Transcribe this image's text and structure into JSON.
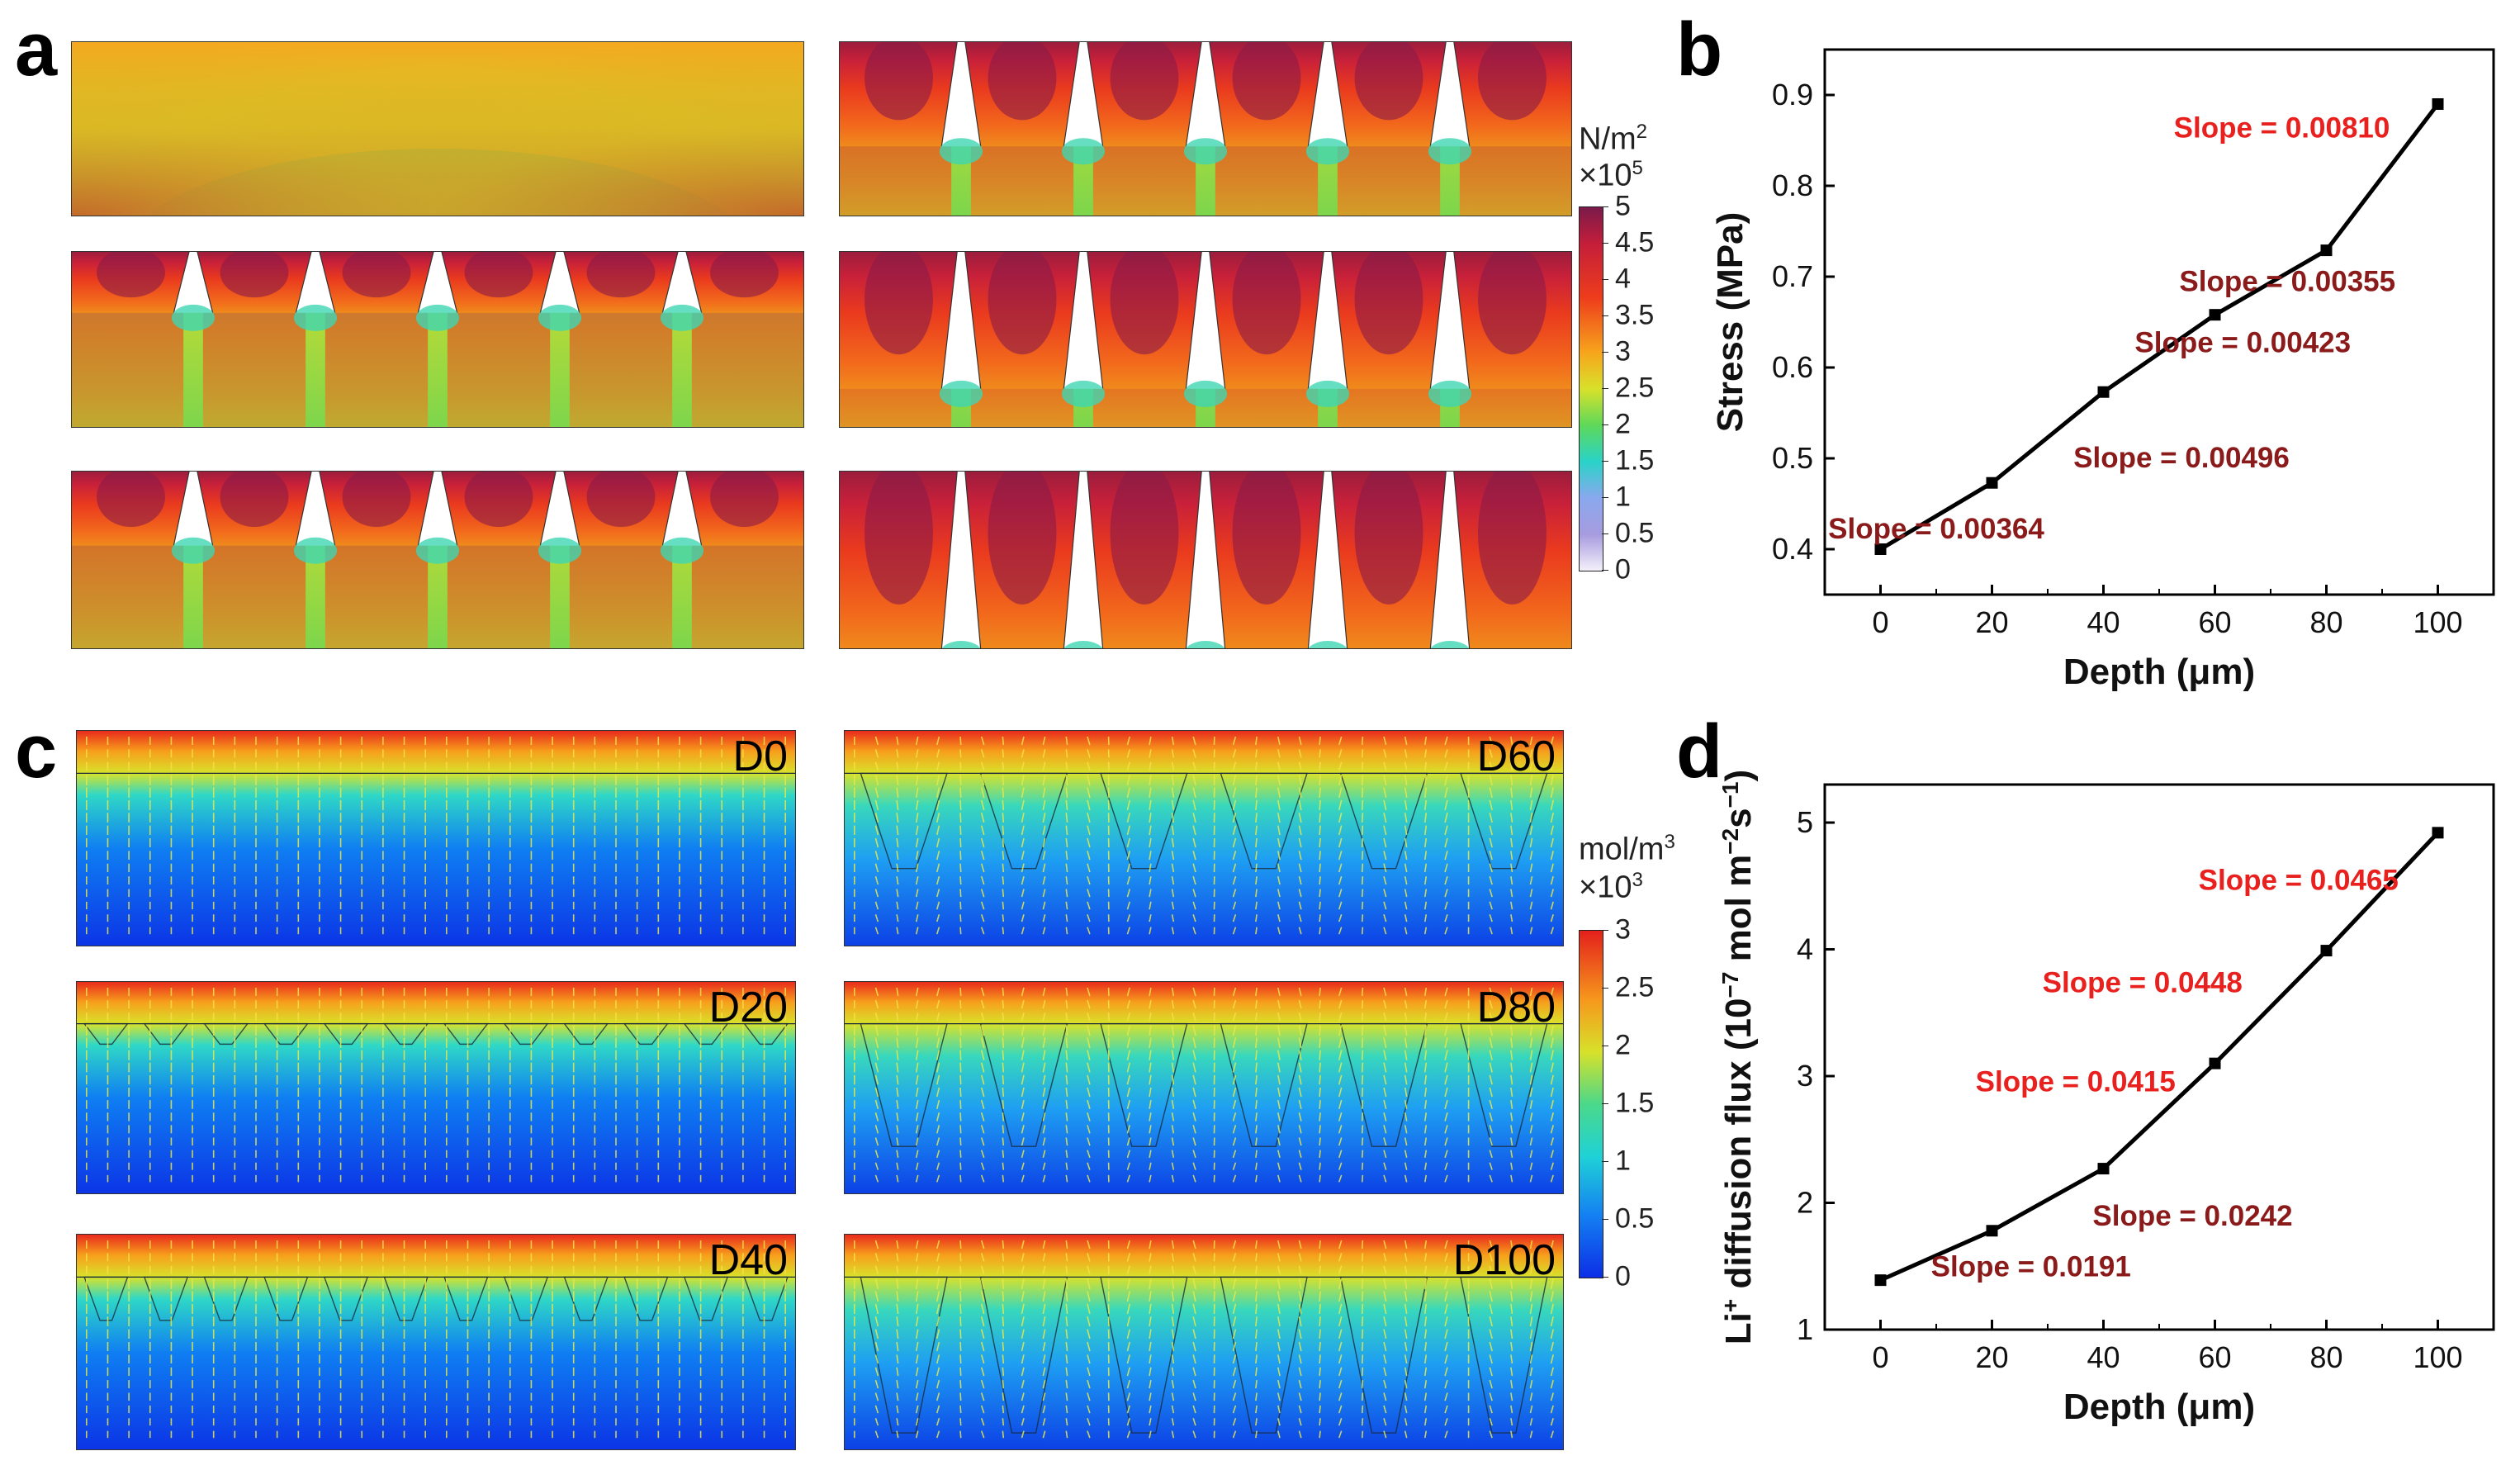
{
  "panel_labels": {
    "a": "a",
    "b": "b",
    "c": "c",
    "d": "d"
  },
  "colors": {
    "stress_slope_bright": "#e8201e",
    "stress_slope_dark": "#8b1a1a",
    "line": "#000000"
  },
  "panel_a": {
    "colorbar": {
      "unit": "N/m²",
      "unit_main": "N/m",
      "unit_sup": "2",
      "scale_main": "×10",
      "scale_sup": "5",
      "ticks": [
        "5",
        "4.5",
        "4",
        "3.5",
        "3",
        "2.5",
        "2",
        "1.5",
        "1",
        "0.5",
        "0"
      ]
    }
  },
  "panel_c": {
    "colorbar": {
      "unit_main": "mol/m",
      "unit_sup": "3",
      "scale_main": "×10",
      "scale_sup": "3",
      "ticks": [
        "3",
        "2.5",
        "2",
        "1.5",
        "1",
        "0.5",
        "0"
      ]
    },
    "labels": [
      "D0",
      "D20",
      "D40",
      "D60",
      "D80",
      "D100"
    ]
  },
  "chart_data": [
    {
      "type": "line",
      "panel": "b",
      "x": [
        0,
        20,
        40,
        60,
        80,
        100
      ],
      "y": [
        0.4,
        0.473,
        0.573,
        0.658,
        0.729,
        0.89
      ],
      "xlabel": "Depth (μm)",
      "ylabel": "Stress (MPa)",
      "xlim": [
        -10,
        110
      ],
      "ylim": [
        0.35,
        0.95
      ],
      "xticks": [
        "0",
        "20",
        "40",
        "60",
        "80",
        "100"
      ],
      "yticks": [
        "0.4",
        "0.5",
        "0.6",
        "0.7",
        "0.8",
        "0.9"
      ],
      "annotations": [
        {
          "text": "Slope = 0.00364",
          "x": 10,
          "y": 0.412,
          "color": "dark"
        },
        {
          "text": "Slope = 0.00496",
          "x": 54,
          "y": 0.49,
          "color": "dark"
        },
        {
          "text": "Slope = 0.00423",
          "x": 65,
          "y": 0.617,
          "color": "dark"
        },
        {
          "text": "Slope = 0.00355",
          "x": 73,
          "y": 0.684,
          "color": "dark"
        },
        {
          "text": "Slope = 0.00810",
          "x": 72,
          "y": 0.853,
          "color": "bright"
        }
      ]
    },
    {
      "type": "line",
      "panel": "d",
      "x": [
        0,
        20,
        40,
        60,
        80,
        100
      ],
      "y": [
        1.39,
        1.78,
        2.27,
        3.1,
        3.99,
        4.92
      ],
      "xlabel": "Depth (μm)",
      "ylabel_parts": [
        "Li",
        "+",
        " diffusion flux (10",
        "−7",
        " mol m",
        "−2",
        "s",
        "−1",
        ")"
      ],
      "xlim": [
        -10,
        110
      ],
      "ylim": [
        1,
        5.3
      ],
      "xticks": [
        "0",
        "20",
        "40",
        "60",
        "80",
        "100"
      ],
      "yticks": [
        "1",
        "2",
        "3",
        "4",
        "5"
      ],
      "annotations": [
        {
          "text": "Slope = 0.0191",
          "x": 27,
          "y": 1.42,
          "color": "dark"
        },
        {
          "text": "Slope = 0.0242",
          "x": 56,
          "y": 1.82,
          "color": "dark"
        },
        {
          "text": "Slope = 0.0415",
          "x": 35,
          "y": 2.88,
          "color": "bright"
        },
        {
          "text": "Slope = 0.0448",
          "x": 47,
          "y": 3.66,
          "color": "bright"
        },
        {
          "text": "Slope = 0.0465",
          "x": 75,
          "y": 4.47,
          "color": "bright"
        }
      ]
    }
  ]
}
